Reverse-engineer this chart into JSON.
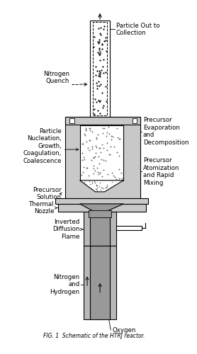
{
  "title": "FIG. 1  Schematic of the HTRJ reactor.",
  "bg_color": "#ffffff",
  "gray_light": "#c8c8c8",
  "gray_dark": "#999999",
  "gray_med": "#b8b8b8",
  "black": "#000000",
  "labels": {
    "particle_out": "Particle Out to\nCollection",
    "nitrogen_quench": "Nitrogen\nQuench",
    "particle_nuc": "Particle\nNucleation,\nGrowth,\nCoagulation,\nCoalescence",
    "precursor_evap": "Precursor\nEvaporation\nand\nDecomposition",
    "precursor_sol": "Precursor\nSolution",
    "precursor_atom": "Precursor\nAtomization\nand Rapid\nMixing",
    "thermal_nozzle": "Thermal\nNozzle",
    "inverted_flame": "Inverted\nDiffusion\nFlame",
    "nitrogen_hydrogen": "Nitrogen\nand\nHydrogen",
    "oxygen": "Oxygen"
  }
}
